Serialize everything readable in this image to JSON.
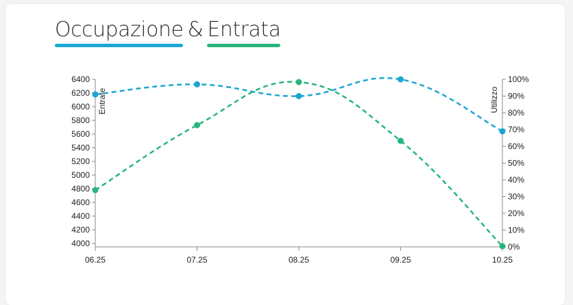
{
  "header": {
    "title_part1": "Occupazione",
    "title_amp": "&",
    "title_part2": "Entrata"
  },
  "colors": {
    "occupazione": "#1ba6d2",
    "entrata": "#27b57c",
    "axis": "#888888",
    "text": "#2d2d2d"
  },
  "chart_data": {
    "type": "line",
    "line_style": "dashed",
    "x": [
      "06.25",
      "07.25",
      "08.25",
      "09.25",
      "10.25"
    ],
    "y_left": {
      "label": "Entrate",
      "min": 3950,
      "max": 6400,
      "ticks": [
        4000,
        4200,
        4400,
        4600,
        4800,
        5000,
        5200,
        5400,
        5600,
        5800,
        6000,
        6200,
        6400
      ]
    },
    "y_right": {
      "label": "Utilizzo",
      "min": 0,
      "max": 100,
      "ticks": [
        "0%",
        "10%",
        "20%",
        "30%",
        "40%",
        "50%",
        "60%",
        "70%",
        "80%",
        "90%",
        "100%"
      ]
    },
    "series": [
      {
        "key": "occupazione",
        "axis": "right",
        "values": [
          91,
          97,
          90,
          100,
          69
        ]
      },
      {
        "key": "entrata",
        "axis": "left",
        "values": [
          4780,
          5730,
          6360,
          5500,
          3960
        ]
      }
    ]
  }
}
